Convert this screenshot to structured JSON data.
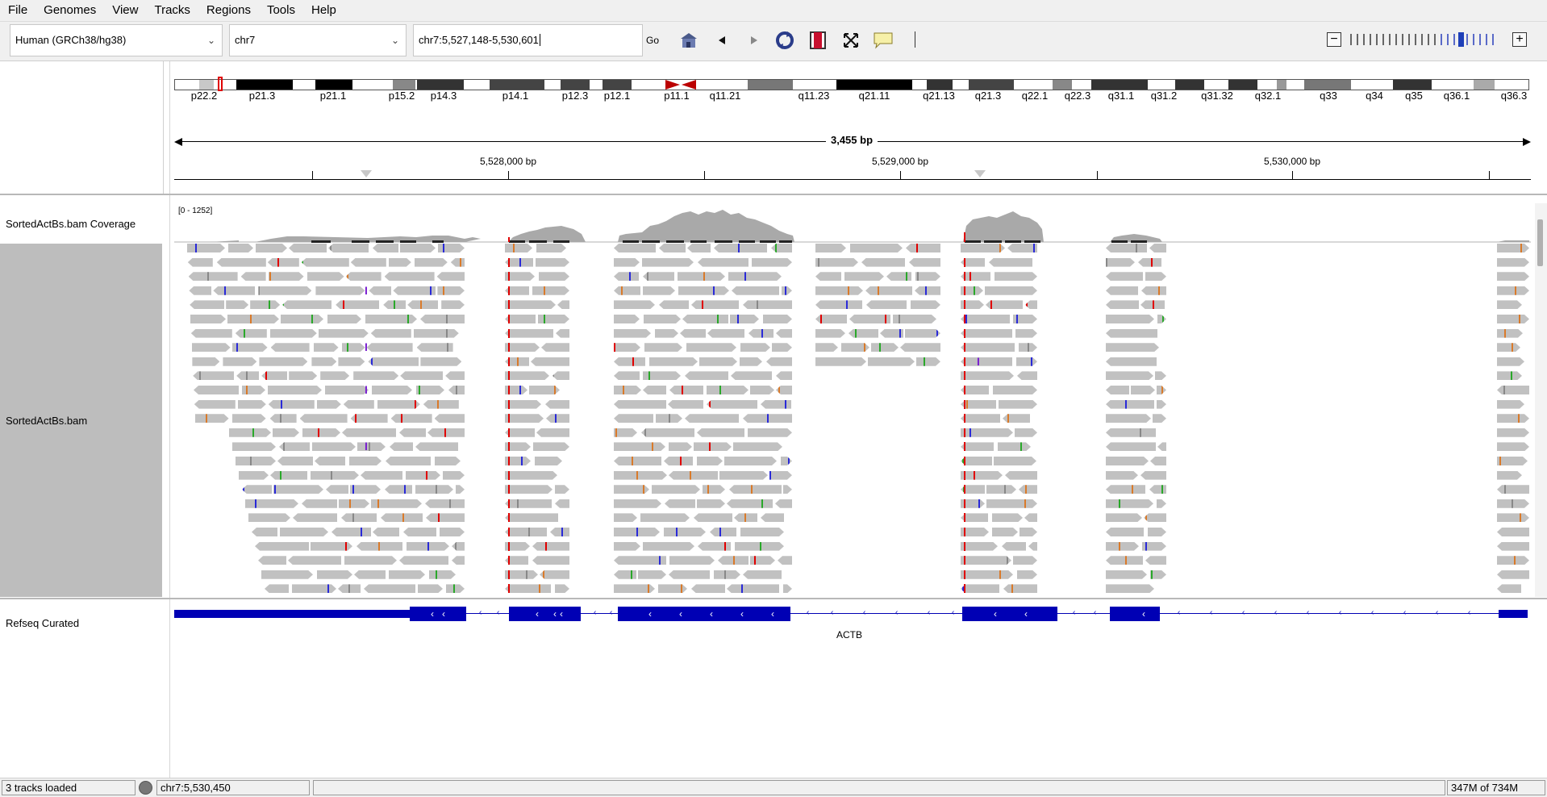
{
  "menu": [
    "File",
    "Genomes",
    "View",
    "Tracks",
    "Regions",
    "Tools",
    "Help"
  ],
  "toolbar": {
    "genome": "Human (GRCh38/hg38)",
    "chromosome": "chr7",
    "locus": "chr7:5,527,148-5,530,601",
    "go_label": "Go",
    "icons": [
      "home-icon",
      "back-icon",
      "forward-icon",
      "refresh-icon",
      "region-of-interest-icon",
      "resize-icon",
      "popup-info-icon"
    ]
  },
  "ideogram": {
    "bands": [
      "p22.2",
      "p21.3",
      "p21.1",
      "p15.2",
      "p14.3",
      "p14.1",
      "p12.3",
      "p12.1",
      "p11.1",
      "q11.21",
      "q11.23",
      "q21.11",
      "q21.13",
      "q21.3",
      "q22.1",
      "q22.3",
      "q31.1",
      "q31.2",
      "q31.32",
      "q32.1",
      "q33",
      "q34",
      "q35",
      "q36.1",
      "q36.3"
    ]
  },
  "ruler": {
    "span": "3,455 bp",
    "ticks": [
      "5,528,000 bp",
      "5,529,000 bp",
      "5,530,000 bp"
    ]
  },
  "tracks": {
    "coverage_name": "SortedActBs.bam Coverage",
    "coverage_range": "[0 - 1252]",
    "alignment_name": "SortedActBs.bam",
    "gene_track_name": "Refseq Curated",
    "gene_name": "ACTB"
  },
  "status": {
    "tracks_loaded": "3 tracks loaded",
    "position": "chr7:5,530,450",
    "memory": "347M of 734M"
  }
}
